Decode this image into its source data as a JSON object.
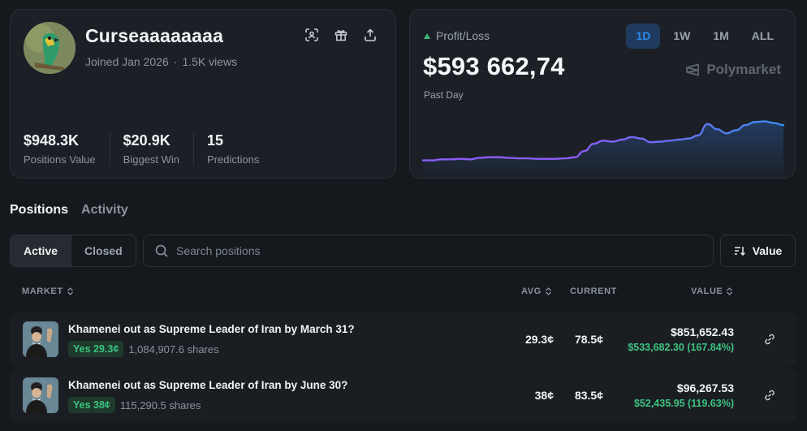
{
  "profile": {
    "username": "Curseaaaaaaaa",
    "joined": "Joined Jan 2026",
    "views": "1.5K views",
    "separator": "·",
    "icons": [
      "scan-icon",
      "gift-icon",
      "share-icon"
    ],
    "stats": [
      {
        "value": "$948.3K",
        "label": "Positions Value"
      },
      {
        "value": "$20.9K",
        "label": "Biggest Win"
      },
      {
        "value": "15",
        "label": "Predictions"
      }
    ]
  },
  "pnl": {
    "label": "Profit/Loss",
    "amount": "$593 662,74",
    "period": "Past Day",
    "brand": "Polymarket",
    "ranges": [
      "1D",
      "1W",
      "1M",
      "ALL"
    ],
    "active_range": "1D",
    "series": [
      0.1,
      0.1,
      0.12,
      0.12,
      0.13,
      0.12,
      0.15,
      0.16,
      0.16,
      0.15,
      0.14,
      0.14,
      0.13,
      0.13,
      0.13,
      0.14,
      0.16,
      0.28,
      0.42,
      0.48,
      0.46,
      0.5,
      0.55,
      0.52,
      0.45,
      0.46,
      0.48,
      0.5,
      0.52,
      0.58,
      0.8,
      0.7,
      0.62,
      0.68,
      0.78,
      0.84,
      0.85,
      0.82,
      0.78
    ],
    "colors": {
      "line_start": "#8b5cf6",
      "line_end": "#3b8beb",
      "up": "#3cb878"
    }
  },
  "tabs": {
    "positions": "Positions",
    "activity": "Activity"
  },
  "filters": {
    "active": "Active",
    "closed": "Closed"
  },
  "search": {
    "placeholder": "Search positions"
  },
  "sort": {
    "label": "Value"
  },
  "table": {
    "headers": {
      "market": "MARKET",
      "avg": "AVG",
      "current": "CURRENT",
      "value": "VALUE"
    },
    "rows": [
      {
        "title": "Khamenei out as Supreme Leader of Iran by March 31?",
        "outcome": "Yes 29.3¢",
        "shares": "1,084,907.6 shares",
        "avg": "29.3¢",
        "current": "78.5¢",
        "value": "$851,652.43",
        "gain": "$533,682.30 (167.84%)"
      },
      {
        "title": "Khamenei out as Supreme Leader of Iran by June 30?",
        "outcome": "Yes 38¢",
        "shares": "115,290.5 shares",
        "avg": "38¢",
        "current": "83.5¢",
        "value": "$96,267.53",
        "gain": "$52,435.95 (119.63%)"
      }
    ]
  }
}
